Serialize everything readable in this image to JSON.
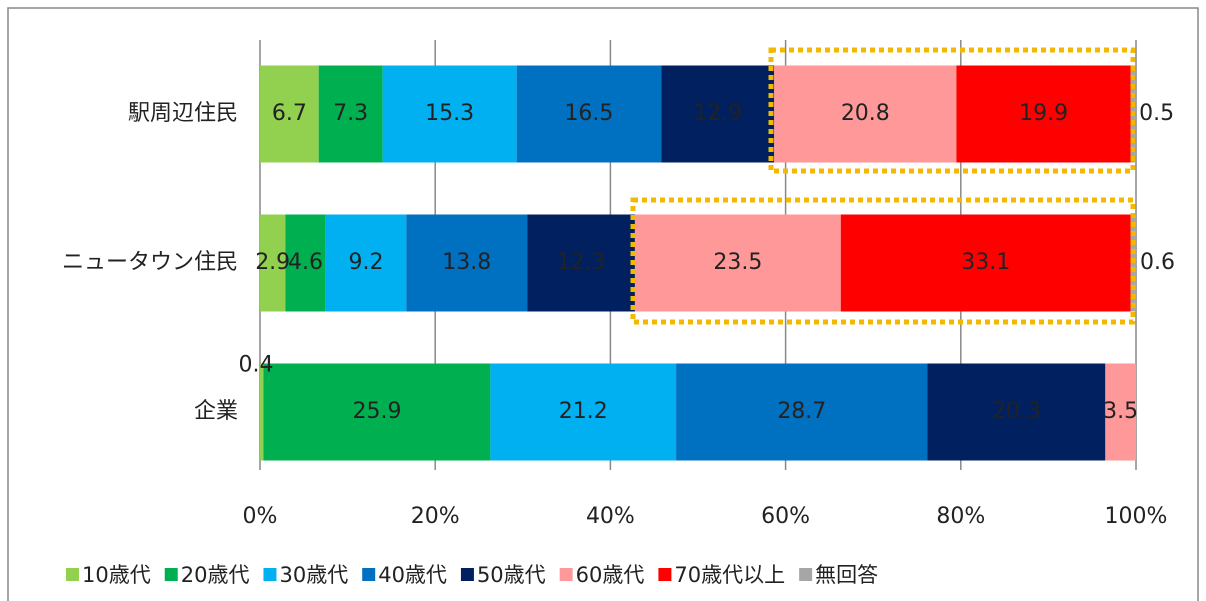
{
  "chart_data": {
    "type": "stacked_bar_horizontal",
    "categories": [
      "駅周辺住民",
      "ニュータウン住民",
      "企業"
    ],
    "series": [
      {
        "name": "10歳代",
        "color": "#92d050",
        "values": [
          6.7,
          2.9,
          0.4
        ]
      },
      {
        "name": "20歳代",
        "color": "#00b050",
        "values": [
          7.3,
          4.6,
          25.9
        ]
      },
      {
        "name": "30歳代",
        "color": "#00b0f0",
        "values": [
          15.3,
          9.2,
          21.2
        ]
      },
      {
        "name": "40歳代",
        "color": "#0070c0",
        "values": [
          16.5,
          13.8,
          28.7
        ]
      },
      {
        "name": "50歳代",
        "color": "#002060",
        "values": [
          12.9,
          12.3,
          20.3
        ]
      },
      {
        "name": "60歳代",
        "color": "#ff9999",
        "values": [
          20.8,
          23.5,
          3.5
        ]
      },
      {
        "name": "70歳代以上",
        "color": "#ff0000",
        "values": [
          19.9,
          33.1,
          null
        ]
      },
      {
        "name": "無回答",
        "color": "#a6a6a6",
        "values": [
          0.5,
          0.6,
          null
        ]
      }
    ],
    "xlim": [
      0,
      100
    ],
    "xticks": [
      {
        "value": 0,
        "label": "0%"
      },
      {
        "value": 20,
        "label": "20%"
      },
      {
        "value": 40,
        "label": "40%"
      },
      {
        "value": 60,
        "label": "60%"
      },
      {
        "value": 80,
        "label": "80%"
      },
      {
        "value": 100,
        "label": "100%"
      }
    ],
    "grid": true,
    "legend": "bottom"
  }
}
